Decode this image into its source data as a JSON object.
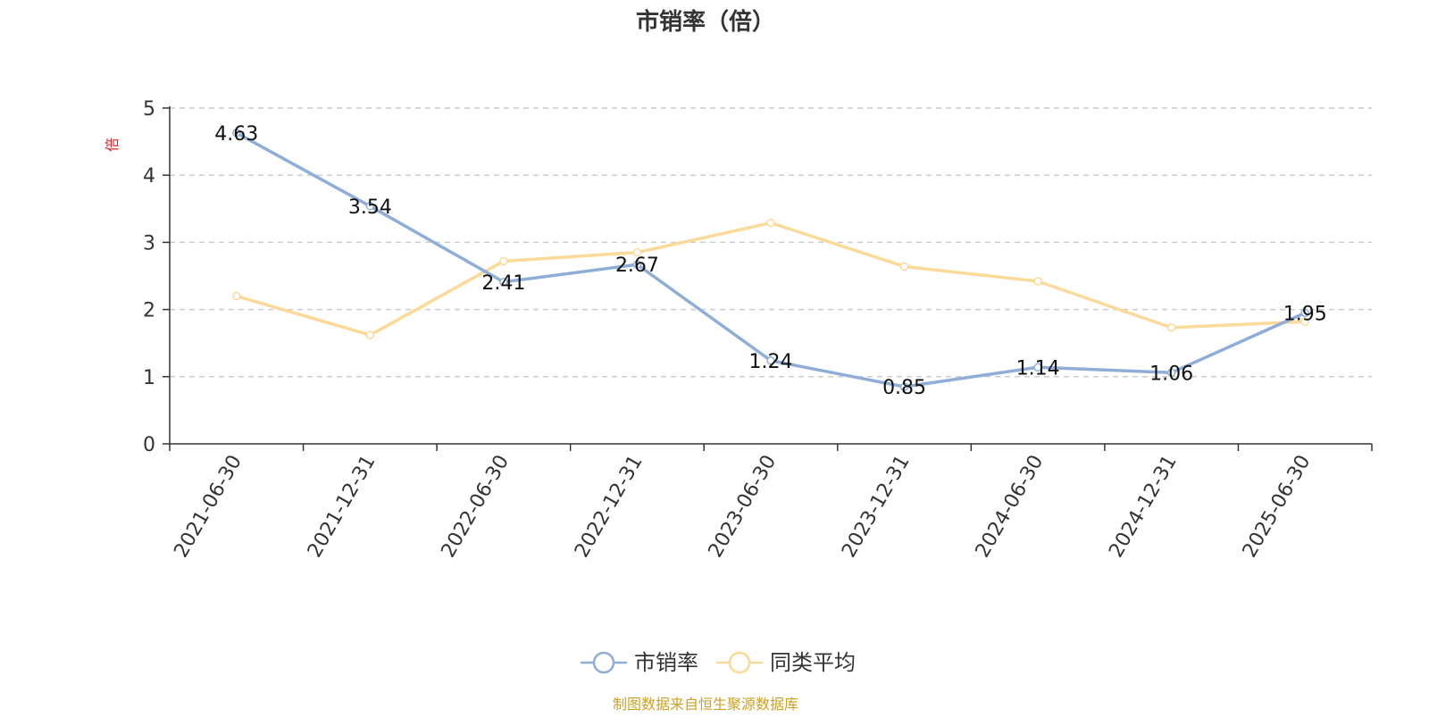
{
  "chart_data": {
    "type": "line",
    "title": "市销率（倍）",
    "ylabel": "倍",
    "xlabel": "",
    "categories": [
      "2021-06-30",
      "2021-12-31",
      "2022-06-30",
      "2022-12-31",
      "2023-06-30",
      "2023-12-31",
      "2024-06-30",
      "2024-12-31",
      "2025-06-30"
    ],
    "ylim": [
      0,
      5
    ],
    "yticks": [
      0,
      1,
      2,
      3,
      4,
      5
    ],
    "grid": true,
    "legend_position": "bottom",
    "series": [
      {
        "name": "市销率",
        "color": "#8eaed8",
        "values": [
          4.63,
          3.54,
          2.41,
          2.67,
          1.24,
          0.85,
          1.14,
          1.06,
          1.95
        ],
        "show_labels": true
      },
      {
        "name": "同类平均",
        "color": "#fbd999",
        "values": [
          2.2,
          1.62,
          2.72,
          2.85,
          3.29,
          2.64,
          2.42,
          1.73,
          1.82
        ],
        "show_labels": false
      }
    ],
    "source_note": "制图数据来自恒生聚源数据库"
  },
  "colors": {
    "title": "#333333",
    "axis": "#333333",
    "grid": "#cccccc",
    "ylabel": "#e0262a",
    "source": "#c9a227",
    "label": "#111111"
  }
}
